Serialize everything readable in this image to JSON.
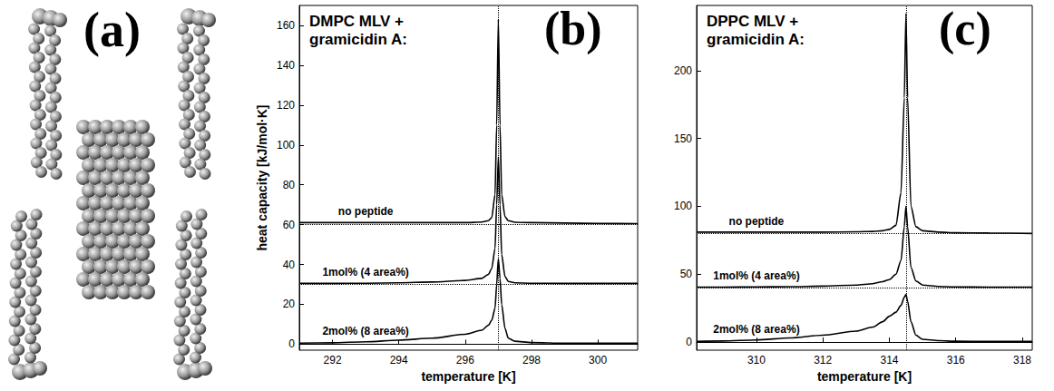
{
  "panel_a": {
    "panel": "(a)"
  },
  "chart_data": [
    {
      "type": "line",
      "panel": "(b)",
      "title": "DMPC MLV + gramicidin A:",
      "x_label": "temperature [K]",
      "y_label": "heat capacity [kJ/mol·K]",
      "x": [
        291,
        292,
        293,
        294,
        295,
        296,
        296.5,
        296.7,
        296.8,
        296.9,
        296.95,
        297.0,
        297.05,
        297.1,
        297.2,
        297.3,
        297.5,
        298,
        299,
        300,
        301.2
      ],
      "xlim": [
        291,
        301.2
      ],
      "xticks": [
        292,
        294,
        296,
        298,
        300
      ],
      "ylim": [
        -3,
        170
      ],
      "yticks": [
        0,
        20,
        40,
        60,
        80,
        100,
        120,
        140,
        160
      ],
      "grid": false,
      "reference_x": 297.0,
      "series": [
        {
          "name": "no peptide",
          "color": "#000000",
          "baseline": 60,
          "values": [
            61,
            61,
            61,
            61,
            61,
            61,
            61.3,
            62,
            63.5,
            75,
            110,
            163,
            110,
            75,
            64,
            62,
            61.2,
            61,
            60.8,
            60.6,
            60.5
          ]
        },
        {
          "name": "1mol% (4 area%)",
          "color": "#000000",
          "baseline": 30,
          "values": [
            30.5,
            30.5,
            30.6,
            30.8,
            31.2,
            32,
            33,
            35,
            38,
            48,
            70,
            94,
            70,
            45,
            34,
            31.5,
            30.8,
            30.6,
            30.5,
            30.5,
            30.5
          ]
        },
        {
          "name": "2mol% (8 area%)",
          "color": "#000000",
          "baseline": 0,
          "values": [
            0.5,
            0.7,
            1.2,
            2,
            3,
            5,
            7,
            9.5,
            12,
            18,
            30,
            43,
            33,
            20,
            8,
            3,
            1.5,
            0.8,
            0.5,
            0.5,
            0.5
          ]
        }
      ]
    },
    {
      "type": "line",
      "panel": "(c)",
      "title": "DPPC MLV + gramicidin A:",
      "x_label": "temperature [K]",
      "x": [
        308.2,
        309,
        310,
        311,
        312,
        313,
        313.5,
        313.8,
        314.0,
        314.2,
        314.35,
        314.45,
        314.5,
        314.55,
        314.65,
        314.8,
        315,
        315.5,
        316,
        317,
        318.3
      ],
      "xlim": [
        308.2,
        318.3
      ],
      "xticks": [
        310,
        312,
        314,
        316,
        318
      ],
      "ylim": [
        -6,
        248
      ],
      "yticks": [
        0,
        50,
        100,
        150,
        200
      ],
      "grid": false,
      "reference_x": 314.5,
      "series": [
        {
          "name": "no peptide",
          "color": "#000000",
          "baseline": 80,
          "values": [
            81,
            81,
            81,
            81,
            81,
            81.2,
            81.5,
            82,
            83,
            86,
            110,
            180,
            242,
            180,
            100,
            85,
            82,
            81,
            80.5,
            80.3,
            80
          ]
        },
        {
          "name": "1mol% (4 area%)",
          "color": "#000000",
          "baseline": 40,
          "values": [
            40.5,
            40.5,
            40.6,
            40.8,
            41.2,
            42,
            43,
            44.5,
            46,
            50,
            60,
            85,
            100,
            85,
            55,
            45,
            42,
            41,
            40.6,
            40.5,
            40.5
          ]
        },
        {
          "name": "2mol% (8 area%)",
          "color": "#000000",
          "baseline": 0,
          "values": [
            0.5,
            0.8,
            1.5,
            3,
            5,
            8,
            11,
            15,
            19,
            22,
            27,
            33,
            35,
            30,
            15,
            5,
            2,
            1,
            0.6,
            0.5,
            0.5
          ]
        }
      ]
    }
  ]
}
